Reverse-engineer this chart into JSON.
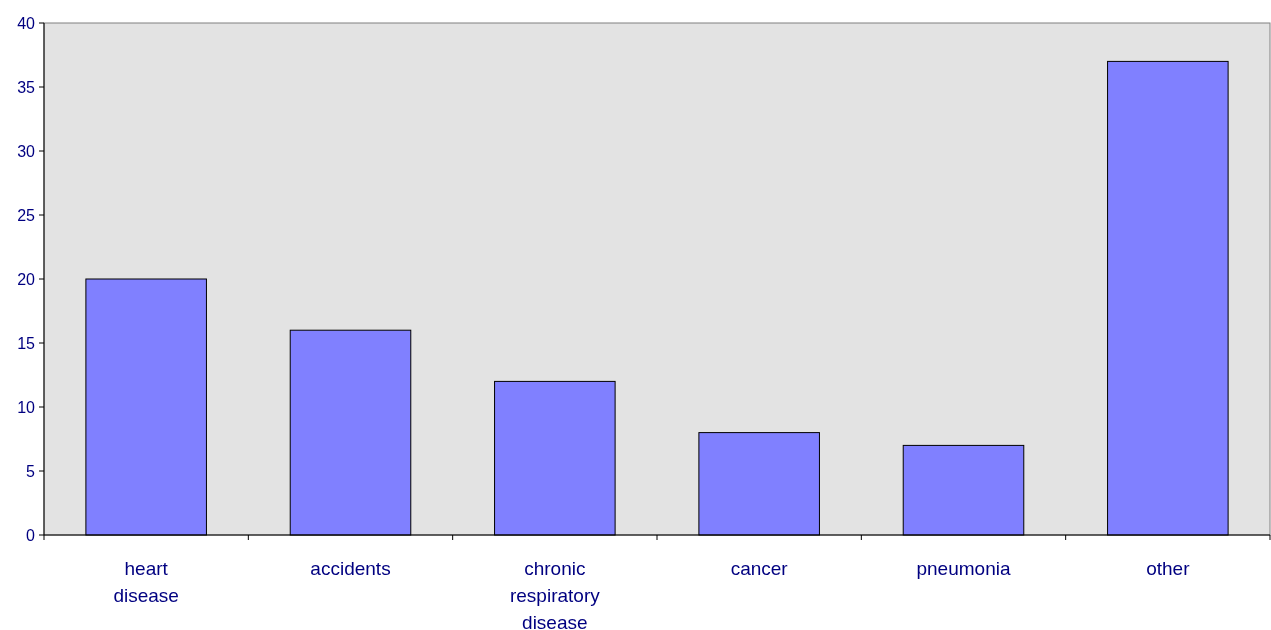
{
  "chart_data": {
    "type": "bar",
    "categories": [
      "heart disease",
      "accidents",
      "chronic respiratory disease",
      "cancer",
      "pneumonia",
      "other"
    ],
    "values": [
      20,
      16,
      12,
      8,
      7,
      37
    ],
    "color": "#8080ff",
    "ylim": [
      0,
      40
    ],
    "yticks": [
      0,
      5,
      10,
      15,
      20,
      25,
      30,
      35,
      40
    ],
    "grid": false
  }
}
